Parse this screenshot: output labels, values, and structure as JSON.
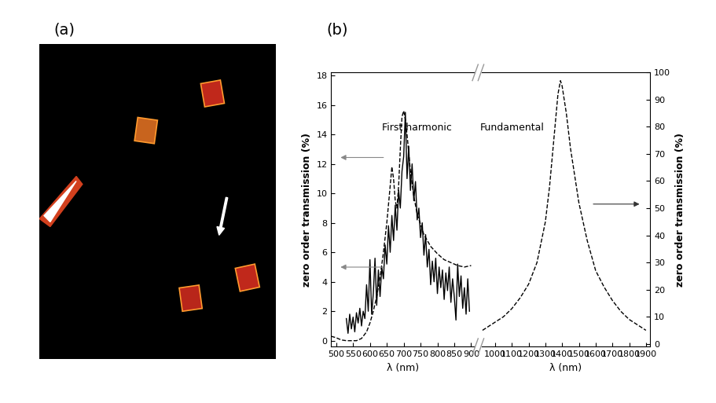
{
  "labels": [
    "(a)",
    "(b)"
  ],
  "chart_data": [
    {
      "type": "line",
      "xlabel": "λ (nm)",
      "ylabel": "zero order transmission (%)",
      "annotations": [
        "First harmonic"
      ],
      "xlim": [
        485,
        910
      ],
      "xticks": [
        500,
        550,
        600,
        650,
        700,
        750,
        800,
        850,
        900
      ],
      "ylim": [
        -0.4,
        18.2
      ],
      "yticks": [
        0,
        2,
        4,
        6,
        8,
        10,
        12,
        14,
        16,
        18
      ],
      "series": [
        {
          "color": "#000000",
          "line_style": "dashed",
          "x": [
            485,
            500,
            515,
            530,
            545,
            560,
            575,
            590,
            600,
            610,
            620,
            630,
            640,
            650,
            660,
            665,
            670,
            675,
            680,
            685,
            690,
            695,
            700,
            705,
            710,
            720,
            730,
            740,
            760,
            780,
            800,
            820,
            840,
            860,
            880,
            900
          ],
          "values": [
            0.3,
            0.2,
            0.05,
            0,
            0,
            0,
            0.15,
            0.6,
            1.2,
            2.0,
            3.0,
            4.3,
            6.0,
            8.0,
            10.5,
            11.8,
            11.0,
            9.5,
            9.0,
            10.5,
            13.0,
            15.2,
            15.6,
            15.0,
            14.0,
            11.5,
            9.8,
            8.6,
            7.2,
            6.4,
            5.9,
            5.5,
            5.3,
            5.1,
            5.0,
            5.1
          ]
        },
        {
          "color": "#000000",
          "line_style": "solid",
          "x": [
            530,
            535,
            540,
            545,
            550,
            555,
            560,
            565,
            570,
            575,
            580,
            585,
            590,
            595,
            600,
            605,
            610,
            615,
            620,
            625,
            630,
            635,
            640,
            645,
            650,
            655,
            660,
            665,
            670,
            675,
            680,
            685,
            690,
            695,
            700,
            705,
            710,
            715,
            720,
            725,
            730,
            735,
            740,
            745,
            750,
            755,
            760,
            765,
            770,
            775,
            780,
            785,
            790,
            795,
            800,
            805,
            810,
            815,
            820,
            825,
            830,
            835,
            840,
            845,
            850,
            855,
            860,
            865,
            870,
            875,
            880,
            885,
            890,
            895
          ],
          "values": [
            1.5,
            0.5,
            1.8,
            0.8,
            1.6,
            0.6,
            1.9,
            1.2,
            2.2,
            1.0,
            2.0,
            1.5,
            3.8,
            2.0,
            5.5,
            1.8,
            3.2,
            5.6,
            2.4,
            4.8,
            3.0,
            5.0,
            4.2,
            6.5,
            5.2,
            7.8,
            6.0,
            8.5,
            6.8,
            9.2,
            7.5,
            10.2,
            9.0,
            11.5,
            12.5,
            15.5,
            11.0,
            13.2,
            10.2,
            12.0,
            9.5,
            10.8,
            8.2,
            9.0,
            7.0,
            8.0,
            5.8,
            7.2,
            5.0,
            6.2,
            3.8,
            5.4,
            4.0,
            5.6,
            3.2,
            5.0,
            3.6,
            4.8,
            2.8,
            4.6,
            3.4,
            5.0,
            2.6,
            4.2,
            3.0,
            1.4,
            5.2,
            3.0,
            4.4,
            2.2,
            3.6,
            1.8,
            4.2,
            2.0
          ]
        }
      ]
    },
    {
      "type": "line",
      "xlabel": "λ (nm)",
      "ylabel": "zero order transmission (%)",
      "annotations": [
        "Fundamental"
      ],
      "xlim": [
        920,
        1925
      ],
      "xticks": [
        1000,
        1100,
        1200,
        1300,
        1400,
        1500,
        1600,
        1700,
        1800,
        1900
      ],
      "ylim": [
        -1,
        100
      ],
      "yticks": [
        0,
        10,
        20,
        30,
        40,
        50,
        60,
        70,
        80,
        90,
        100
      ],
      "series": [
        {
          "color": "#000000",
          "line_style": "dashed",
          "x": [
            925,
            950,
            1000,
            1050,
            1100,
            1150,
            1200,
            1250,
            1300,
            1325,
            1350,
            1375,
            1390,
            1400,
            1425,
            1450,
            1500,
            1550,
            1600,
            1650,
            1700,
            1750,
            1800,
            1850,
            1900
          ],
          "values": [
            5,
            6,
            8,
            10,
            13,
            17,
            22,
            30,
            45,
            58,
            75,
            92,
            97,
            95,
            85,
            72,
            52,
            38,
            27,
            21,
            16,
            12,
            9,
            7,
            5
          ]
        }
      ]
    }
  ]
}
